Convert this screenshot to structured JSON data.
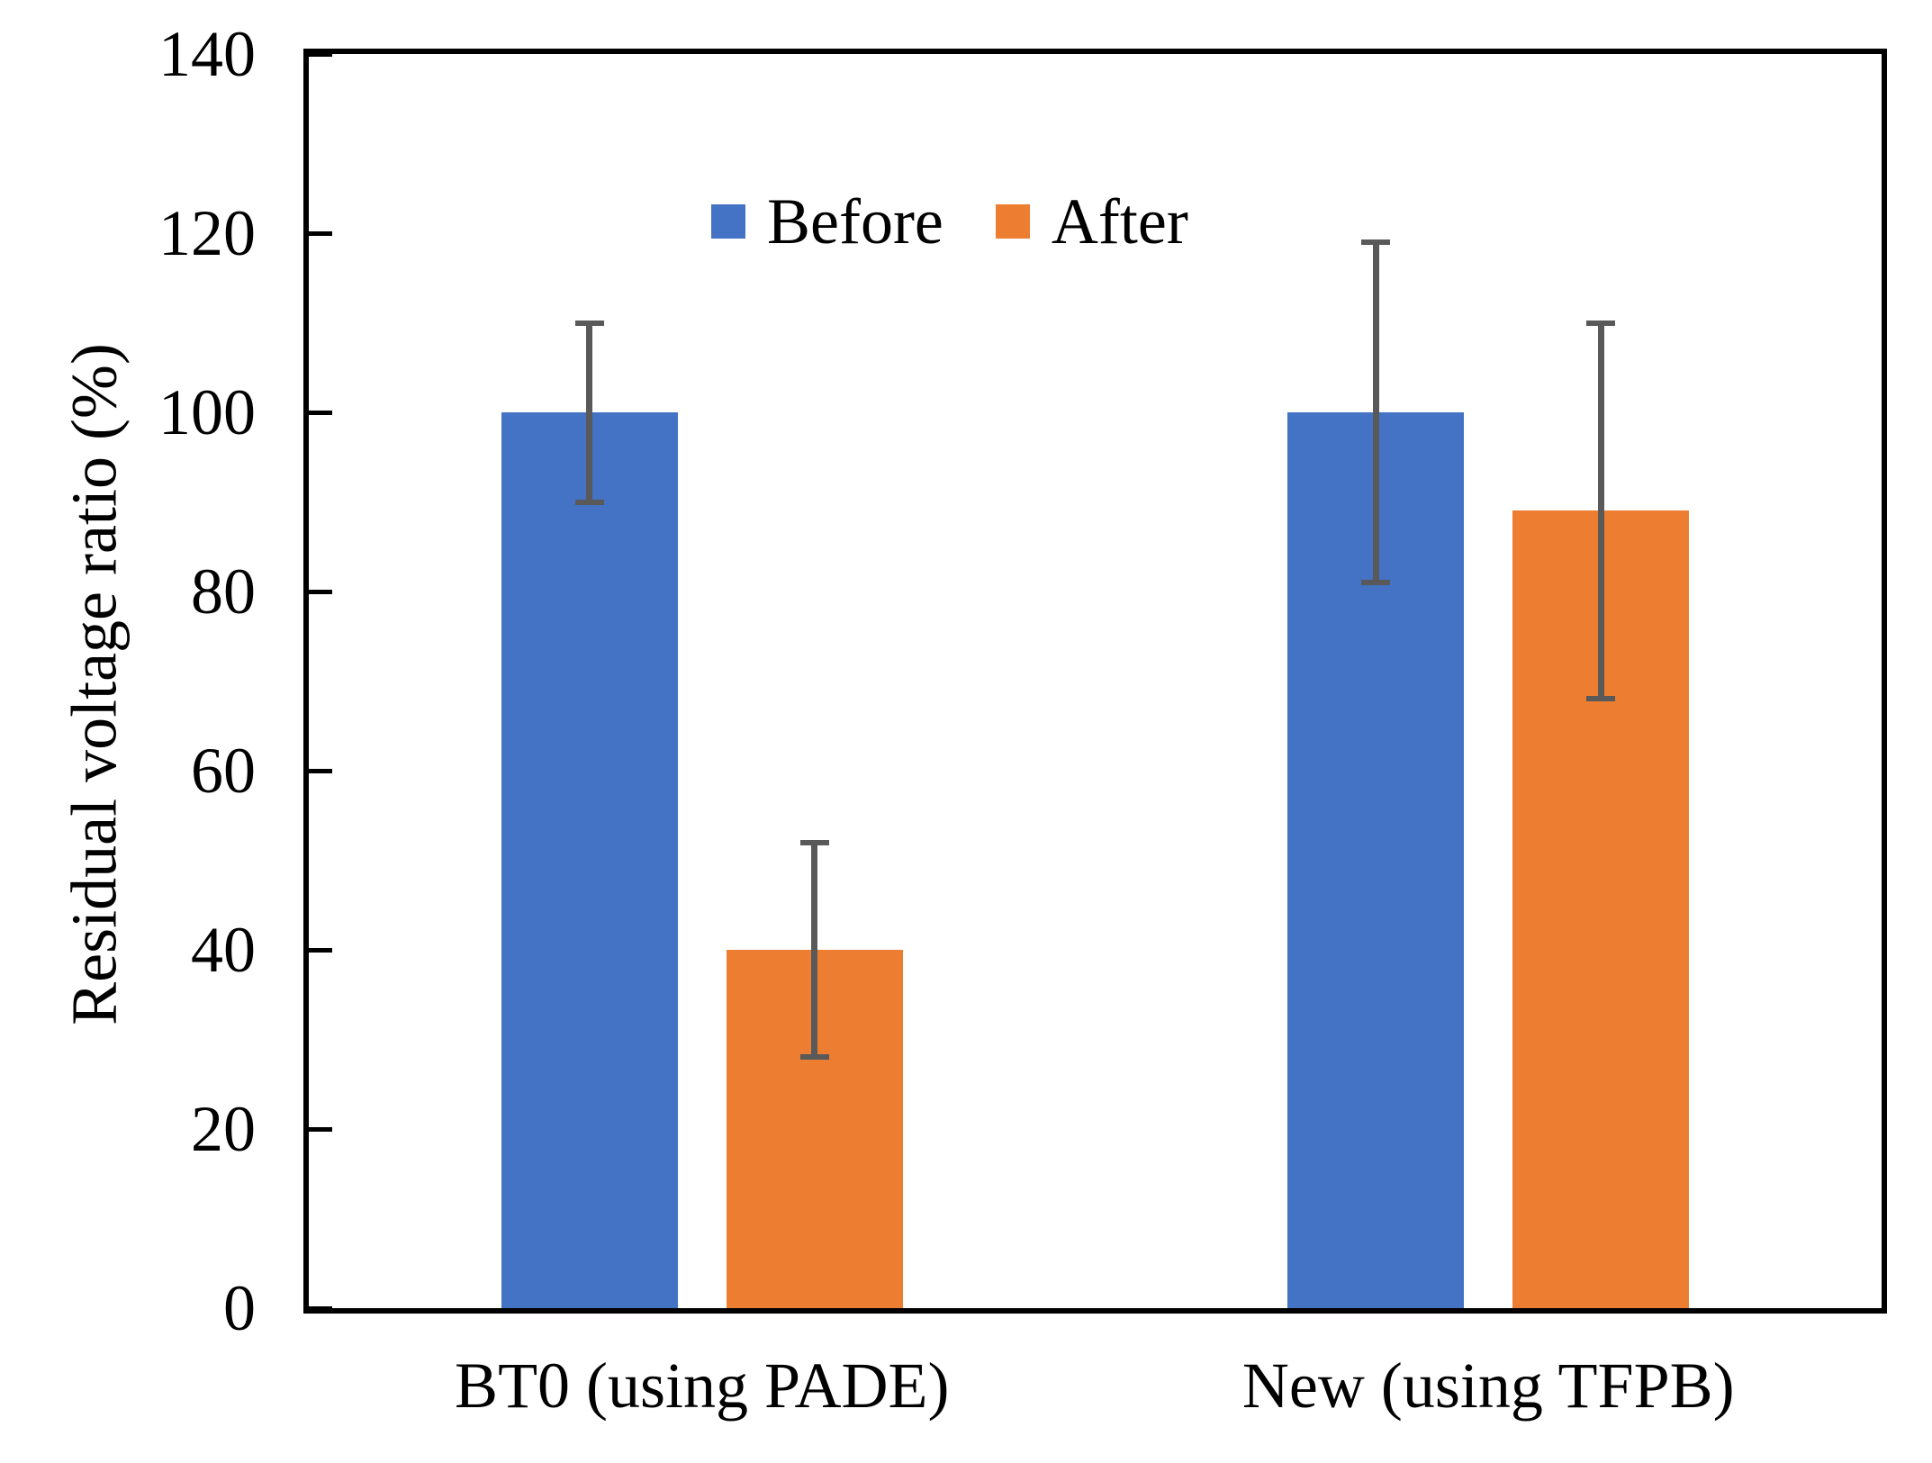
{
  "chart_data": {
    "type": "bar",
    "title": "",
    "xlabel": "",
    "ylabel": "Residual voltage ratio (%)",
    "ylim": [
      0,
      140
    ],
    "ytick_interval": 20,
    "yticks": [
      0,
      20,
      40,
      60,
      80,
      100,
      120,
      140
    ],
    "categories": [
      "BT0 (using PADE)",
      "New (using TFPB)"
    ],
    "series": [
      {
        "name": "Before",
        "color": "#4472C4",
        "values": [
          100,
          100
        ],
        "error_plus": [
          10,
          19
        ],
        "error_minus": [
          10,
          19
        ]
      },
      {
        "name": "After",
        "color": "#ED7D31",
        "values": [
          40,
          89
        ],
        "error_plus": [
          12,
          21
        ],
        "error_minus": [
          12,
          21
        ]
      }
    ],
    "error_bar_color": "#595959",
    "axis_color": "#000000",
    "legend_position": "inside-top",
    "grid": "off"
  }
}
